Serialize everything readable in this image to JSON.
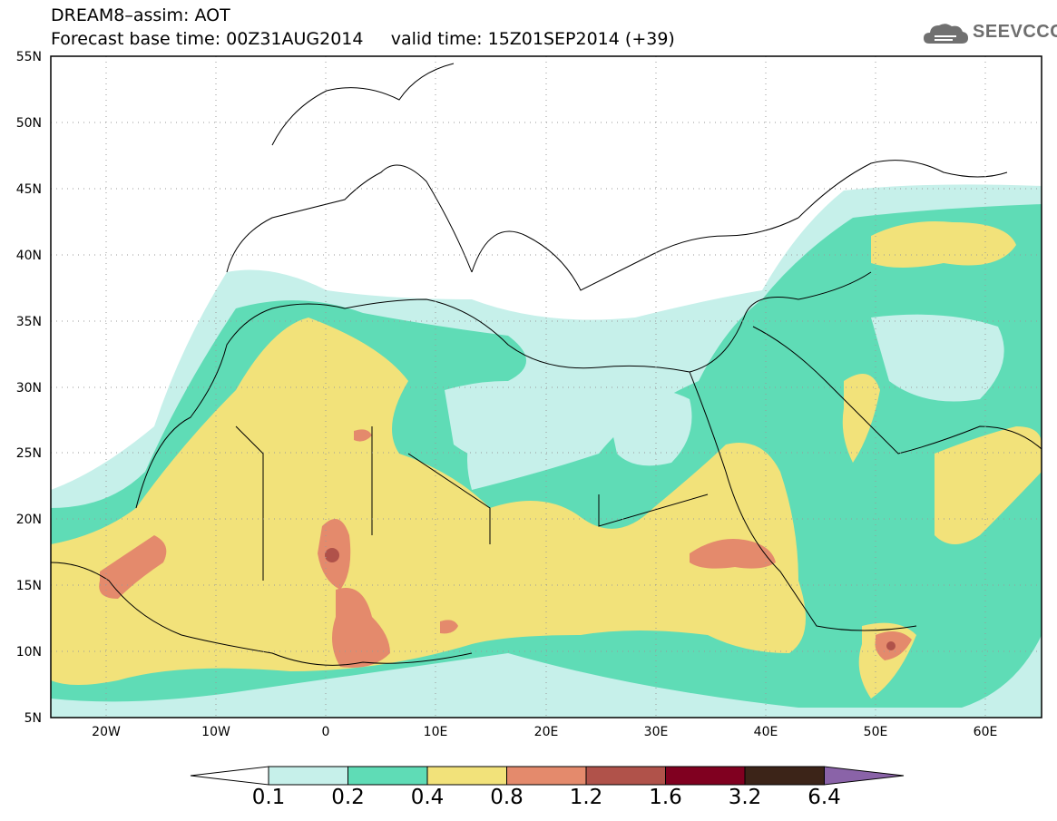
{
  "header": {
    "model_title": "DREAM8–assim: AOT",
    "base_time": "Forecast base time: 00Z31AUG2014",
    "valid_time": "valid time: 15Z01SEP2014 (+39)"
  },
  "logo": {
    "text": "SEEVCCC",
    "icon": "cloud-icon"
  },
  "map": {
    "lon_range": [
      -25,
      65
    ],
    "lat_range": [
      5,
      55
    ],
    "lat_labels": [
      "55N",
      "50N",
      "45N",
      "40N",
      "35N",
      "30N",
      "25N",
      "20N",
      "15N",
      "10N",
      "5N"
    ],
    "lon_labels": [
      "20W",
      "10W",
      "0",
      "10E",
      "20E",
      "30E",
      "40E",
      "50E",
      "60E"
    ]
  },
  "colorbar": {
    "labels": [
      "0.1",
      "0.2",
      "0.4",
      "0.8",
      "1.2",
      "1.6",
      "3.2",
      "6.4"
    ],
    "colors": [
      "#ffffff",
      "#c6f0ea",
      "#5fdcb6",
      "#f2e27a",
      "#e48a6c",
      "#b0524a",
      "#800020",
      "#3c2418",
      "#8a63a8"
    ]
  }
}
